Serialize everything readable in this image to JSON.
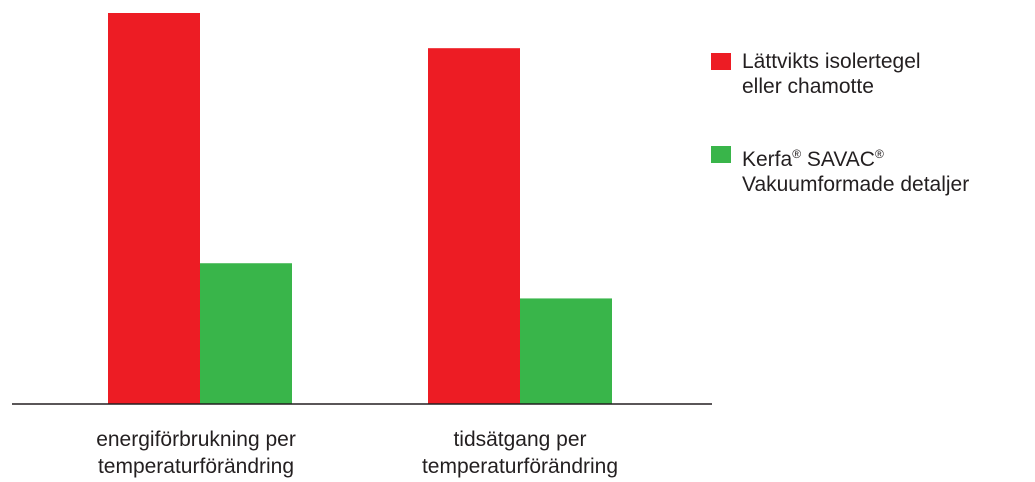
{
  "chart_data": {
    "type": "bar",
    "categories": [
      "energiförbrukning per temperaturförändring",
      "tidsätgang per temperaturförändring"
    ],
    "category_lines": [
      [
        "energiförbrukning per",
        "temperaturförändring"
      ],
      [
        "tidsätgang per",
        "temperaturförändring"
      ]
    ],
    "series": [
      {
        "name": "Lättvikts isolertegel eller chamotte",
        "name_lines": [
          "Lättvikts isolertegel",
          "eller chamotte"
        ],
        "color": "#ed1c24",
        "values": [
          100,
          91
        ]
      },
      {
        "name": "Kerfa® SAVAC® Vakuumformade detaljer",
        "name_lines": [
          "Kerfa® SAVAC®",
          "Vakuumformade detaljer"
        ],
        "color": "#39b54a",
        "values": [
          36,
          27
        ]
      }
    ],
    "ylim": [
      0,
      100
    ],
    "grid": false,
    "legend_position": "right",
    "title": "",
    "xlabel": "",
    "ylabel": ""
  }
}
